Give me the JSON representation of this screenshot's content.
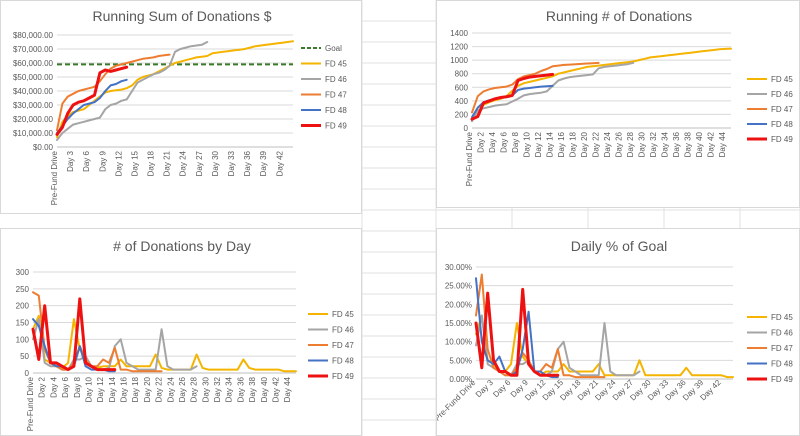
{
  "colors": {
    "FD 45": "#f4b400",
    "FD 46": "#a5a5a5",
    "FD 47": "#ed7d31",
    "FD 48": "#4472c4",
    "FD 49": "#ee1111",
    "Goal": "#3c7a2b"
  },
  "chart_data": [
    {
      "id": "chart1",
      "type": "line",
      "title": "Running Sum of Donations $",
      "xlabel": "",
      "ylabel": "",
      "ylim": [
        0,
        80000
      ],
      "y_ticks": [
        "$0.00",
        "$10,000.00",
        "$20,000.00",
        "$30,000.00",
        "$40,000.00",
        "$50,000.00",
        "$60,000.00",
        "$70,000.00",
        "$80,000.00"
      ],
      "x_labels": [
        "Pre-Fund Drive",
        "Day 3",
        "Day 6",
        "Day 9",
        "Day 12",
        "Day 15",
        "Day 18",
        "Day 21",
        "Day 24",
        "Day 27",
        "Day 30",
        "Day 33",
        "Day 36",
        "Day 39",
        "Day 42"
      ],
      "x_label_positions": [
        0,
        3,
        6,
        9,
        12,
        15,
        18,
        21,
        24,
        27,
        30,
        33,
        36,
        39,
        42
      ],
      "x_count": 45,
      "goal": 59000,
      "legend": [
        "Goal",
        "FD 45",
        "FD 46",
        "FD 47",
        "FD 48",
        "FD 49"
      ],
      "legend_position": "right",
      "series": [
        {
          "name": "FD 45",
          "values": [
            7000,
            18000,
            22000,
            25000,
            26000,
            27000,
            30000,
            33000,
            36000,
            39000,
            40000,
            40500,
            41000,
            42000,
            44000,
            48000,
            50000,
            51000,
            52000,
            54000,
            56000,
            58000,
            60000,
            61000,
            62000,
            63000,
            64000,
            64500,
            65000,
            67000,
            67500,
            68000,
            68500,
            69000,
            69500,
            70000,
            71000,
            72000,
            72500,
            73000,
            73500,
            74000,
            74500,
            75000,
            75500
          ]
        },
        {
          "name": "FD 46",
          "values": [
            5000,
            10000,
            13000,
            16000,
            17000,
            18000,
            19000,
            20000,
            21000,
            27000,
            30000,
            31000,
            33000,
            34000,
            40000,
            46000,
            48000,
            50000,
            52000,
            53000,
            55000,
            58000,
            68000,
            70000,
            71000,
            72000,
            72500,
            73000,
            75000
          ]
        },
        {
          "name": "FD 47",
          "values": [
            12000,
            31000,
            36000,
            38000,
            40000,
            41000,
            42000,
            43000,
            47000,
            52000,
            56000,
            58000,
            59000,
            60000,
            61000,
            62000,
            63000,
            63500,
            64000,
            65000,
            65500,
            66000
          ]
        },
        {
          "name": "FD 48",
          "values": [
            10000,
            15000,
            20000,
            24000,
            27000,
            30000,
            31000,
            32000,
            35000,
            40000,
            44000,
            45000,
            47000,
            48000
          ]
        },
        {
          "name": "FD 49",
          "values": [
            9000,
            14000,
            24000,
            30000,
            32000,
            33000,
            35000,
            37000,
            53000,
            55000,
            54000,
            55000,
            56000,
            57000
          ]
        }
      ]
    },
    {
      "id": "chart2",
      "type": "line",
      "title": "Running # of Donations",
      "xlabel": "",
      "ylabel": "",
      "ylim": [
        0,
        1400
      ],
      "y_ticks": [
        "0",
        "200",
        "400",
        "600",
        "800",
        "1000",
        "1200",
        "1400"
      ],
      "x_labels": [
        "Pre-Fund Drive",
        "Day 2",
        "Day 4",
        "Day 6",
        "Day 8",
        "Day 10",
        "Day 12",
        "Day 14",
        "Day 16",
        "Day 18",
        "Day 20",
        "Day 22",
        "Day 24",
        "Day 26",
        "Day 28",
        "Day 30",
        "Day 32",
        "Day 34",
        "Day 36",
        "Day 38",
        "Day 40",
        "Day 42",
        "Day 44"
      ],
      "x_label_positions": [
        0,
        2,
        4,
        6,
        8,
        10,
        12,
        14,
        16,
        18,
        20,
        22,
        24,
        26,
        28,
        30,
        32,
        34,
        36,
        38,
        40,
        42,
        44
      ],
      "x_count": 46,
      "legend": [
        "FD 45",
        "FD 46",
        "FD 47",
        "FD 48",
        "FD 49"
      ],
      "legend_position": "right",
      "series": [
        {
          "name": "FD 45",
          "values": [
            130,
            300,
            340,
            380,
            410,
            430,
            470,
            550,
            620,
            660,
            680,
            700,
            720,
            740,
            760,
            800,
            820,
            840,
            860,
            880,
            900,
            910,
            920,
            930,
            940,
            950,
            960,
            970,
            980,
            1000,
            1020,
            1040,
            1050,
            1060,
            1070,
            1080,
            1090,
            1100,
            1110,
            1120,
            1130,
            1140,
            1150,
            1160,
            1165,
            1170
          ]
        },
        {
          "name": "FD 46",
          "values": [
            100,
            260,
            290,
            310,
            330,
            340,
            350,
            390,
            430,
            480,
            500,
            510,
            520,
            540,
            620,
            700,
            730,
            750,
            760,
            770,
            780,
            790,
            880,
            900,
            910,
            920,
            930,
            940,
            960
          ]
        },
        {
          "name": "FD 47",
          "values": [
            230,
            470,
            540,
            570,
            590,
            600,
            610,
            640,
            720,
            760,
            780,
            800,
            840,
            870,
            910,
            920,
            930,
            935,
            940,
            945,
            950,
            955,
            960
          ]
        },
        {
          "name": "FD 48",
          "values": [
            160,
            300,
            380,
            410,
            430,
            450,
            460,
            480,
            560,
            580,
            590,
            600,
            610,
            615,
            620
          ]
        },
        {
          "name": "FD 49",
          "values": [
            130,
            170,
            370,
            400,
            430,
            450,
            460,
            480,
            700,
            730,
            750,
            760,
            770,
            780,
            790
          ]
        }
      ]
    },
    {
      "id": "chart3",
      "type": "line",
      "title": "# of Donations by Day",
      "xlabel": "",
      "ylabel": "",
      "ylim": [
        0,
        300
      ],
      "y_ticks": [
        "0",
        "50",
        "100",
        "150",
        "200",
        "250",
        "300"
      ],
      "x_labels": [
        "Pre-Fund Drive",
        "Day 2",
        "Day 4",
        "Day 6",
        "Day 8",
        "Day 10",
        "Day 12",
        "Day 14",
        "Day 16",
        "Day 18",
        "Day 20",
        "Day 22",
        "Day 24",
        "Day 26",
        "Day 28",
        "Day 30",
        "Day 32",
        "Day 34",
        "Day 36",
        "Day 38",
        "Day 40",
        "Day 42",
        "Day 44"
      ],
      "x_label_positions": [
        0,
        2,
        4,
        6,
        8,
        10,
        12,
        14,
        16,
        18,
        20,
        22,
        24,
        26,
        28,
        30,
        32,
        34,
        36,
        38,
        40,
        42,
        44
      ],
      "x_count": 46,
      "legend": [
        "FD 45",
        "FD 46",
        "FD 47",
        "FD 48",
        "FD 49"
      ],
      "legend_position": "right",
      "series": [
        {
          "name": "FD 45",
          "values": [
            130,
            170,
            40,
            30,
            20,
            15,
            30,
            160,
            70,
            40,
            20,
            15,
            20,
            20,
            20,
            40,
            20,
            20,
            20,
            20,
            20,
            55,
            15,
            10,
            10,
            10,
            10,
            10,
            55,
            15,
            10,
            10,
            10,
            10,
            10,
            10,
            40,
            15,
            10,
            10,
            10,
            10,
            10,
            5,
            5,
            5
          ]
        },
        {
          "name": "FD 46",
          "values": [
            100,
            160,
            30,
            20,
            20,
            10,
            10,
            40,
            40,
            50,
            20,
            10,
            10,
            15,
            80,
            100,
            30,
            20,
            10,
            10,
            10,
            10,
            130,
            20,
            10,
            10,
            10,
            10,
            20
          ]
        },
        {
          "name": "FD 47",
          "values": [
            240,
            230,
            70,
            30,
            20,
            10,
            10,
            30,
            80,
            40,
            20,
            20,
            40,
            30,
            75,
            10,
            10,
            5,
            5,
            5,
            5,
            5,
            5
          ]
        },
        {
          "name": "FD 48",
          "values": [
            160,
            140,
            80,
            30,
            20,
            20,
            10,
            20,
            80,
            20,
            10,
            10,
            10,
            5,
            5
          ]
        },
        {
          "name": "FD 49",
          "values": [
            130,
            40,
            200,
            30,
            30,
            20,
            10,
            20,
            220,
            30,
            20,
            10,
            10,
            10,
            10
          ]
        }
      ]
    },
    {
      "id": "chart4",
      "type": "line",
      "title": "Daily % of Goal",
      "xlabel": "",
      "ylabel": "",
      "ylim": [
        0,
        30
      ],
      "y_ticks": [
        "0.00%",
        "5.00%",
        "10.00%",
        "15.00%",
        "20.00%",
        "25.00%",
        "30.00%"
      ],
      "x_labels": [
        "Pre-Fund Drive",
        "Day 3",
        "Day 6",
        "Day 9",
        "Day 12",
        "Day 15",
        "Day 18",
        "Day 21",
        "Day 24",
        "Day 27",
        "Day 30",
        "Day 33",
        "Day 36",
        "Day 39",
        "Day 42"
      ],
      "x_label_positions": [
        0,
        3,
        6,
        9,
        12,
        15,
        18,
        21,
        24,
        27,
        30,
        33,
        36,
        39,
        42
      ],
      "x_count": 45,
      "legend": [
        "FD 45",
        "FD 46",
        "FD 47",
        "FD 48",
        "FD 49"
      ],
      "legend_position": "right",
      "series": [
        {
          "name": "FD 45",
          "values": [
            12,
            17,
            5,
            4,
            2,
            2,
            4,
            15,
            6,
            4,
            2,
            1,
            2,
            2,
            2,
            4,
            2,
            2,
            2,
            2,
            2,
            4,
            1,
            1,
            1,
            1,
            1,
            1,
            5,
            1,
            1,
            1,
            1,
            1,
            1,
            1,
            3,
            1,
            1,
            1,
            1,
            1,
            1,
            0.5,
            0.5
          ]
        },
        {
          "name": "FD 46",
          "values": [
            9,
            17,
            4,
            3,
            2,
            1,
            1,
            4,
            4,
            5,
            2,
            1,
            1,
            2,
            8,
            10,
            3,
            2,
            1,
            1,
            1,
            1,
            15,
            2,
            1,
            1,
            1,
            1,
            2
          ]
        },
        {
          "name": "FD 47",
          "values": [
            17,
            28,
            8,
            3,
            2,
            1,
            1,
            3,
            7,
            5,
            2,
            2,
            4,
            3,
            8,
            1,
            1,
            0.5,
            0.5,
            0.5,
            0.5,
            0.5,
            0.5
          ]
        },
        {
          "name": "FD 48",
          "values": [
            27,
            10,
            5,
            4,
            6,
            2,
            1,
            2,
            8,
            18,
            2,
            2,
            1,
            0.5,
            0.5
          ]
        },
        {
          "name": "FD 49",
          "values": [
            15,
            3,
            23,
            5,
            2,
            2,
            1,
            1,
            24,
            4,
            2,
            1,
            1,
            1,
            1
          ]
        }
      ]
    }
  ]
}
